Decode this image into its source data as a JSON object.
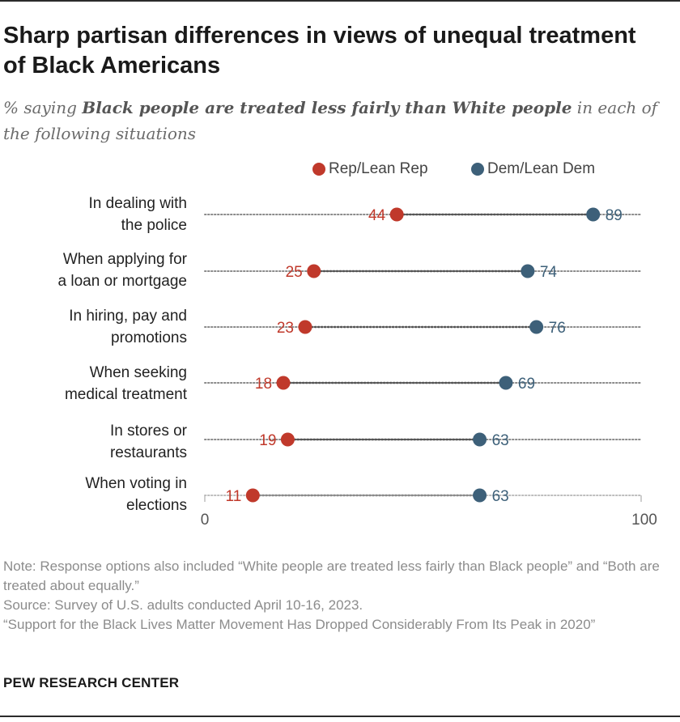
{
  "title": "Sharp partisan differences in views of unequal treatment of Black Americans",
  "subtitle": {
    "prefix": "% saying ",
    "emphasis": "Black people are treated less fairly than White people",
    "suffix": " in each of the following situations"
  },
  "colors": {
    "rep": "#c0392b",
    "dem": "#3d6079",
    "dots": "#8a8a8a",
    "light_dots": "#bdbdbd"
  },
  "chart_data": {
    "type": "dot",
    "xlim": [
      0,
      100
    ],
    "tick_labels": [
      "0",
      "100"
    ],
    "categories": [
      "In dealing with the police",
      "When applying for a loan or mortgage",
      "In hiring, pay and promotions",
      "When seeking medical treatment",
      "In stores or restaurants",
      "When voting in elections"
    ],
    "category_lines": [
      [
        "In dealing with",
        "the police"
      ],
      [
        "When applying for",
        "a loan or mortgage"
      ],
      [
        "In hiring, pay and",
        "promotions"
      ],
      [
        "When seeking",
        "medical treatment"
      ],
      [
        "In stores or",
        "restaurants"
      ],
      [
        "When voting in",
        "elections"
      ]
    ],
    "series": [
      {
        "name": "Rep/Lean Rep",
        "values": [
          44,
          25,
          23,
          18,
          19,
          11
        ]
      },
      {
        "name": "Dem/Lean Dem",
        "values": [
          89,
          74,
          76,
          69,
          63,
          63
        ]
      }
    ],
    "legend_position": "top"
  },
  "notes": {
    "note": "Note: Response options also included “White people are treated less fairly than Black people” and “Both are treated about equally.”",
    "source": "Source: Survey of U.S. adults conducted April 10-16, 2023.",
    "report": "“Support for the Black Lives Matter Movement Has Dropped Considerably From Its Peak in 2020”"
  },
  "brand": "PEW RESEARCH CENTER"
}
